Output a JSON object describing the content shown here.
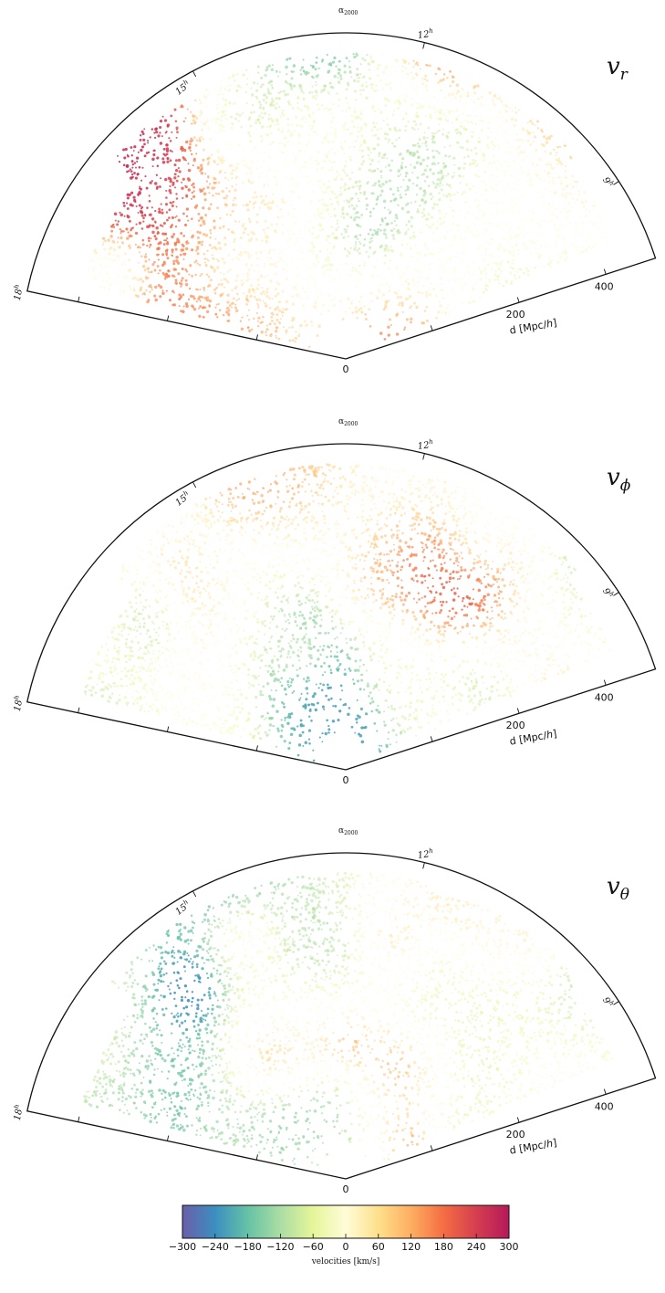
{
  "panels": [
    {
      "chart_data": {
        "type": "scatter",
        "title": "v_r",
        "title_symbol": "v",
        "title_subscript": "r",
        "projection": "polar-wedge",
        "ra_axis_label_symbol": "α",
        "ra_axis_label_subscript": "2000",
        "ra_ticks": [
          {
            "h": "12",
            "sup": "h"
          },
          {
            "h": "15",
            "sup": "h"
          },
          {
            "h": "9",
            "sup": "h"
          },
          {
            "h": "18",
            "sup": "h"
          }
        ],
        "distance_label": "d [Mpc/ℎ]",
        "distance_ticks": [
          "0",
          "200",
          "400"
        ],
        "seed": 11,
        "color_quantity": "radial velocity (km/s)"
      }
    },
    {
      "chart_data": {
        "type": "scatter",
        "title": "v_phi",
        "title_symbol": "v",
        "title_subscript": "ϕ",
        "projection": "polar-wedge",
        "ra_axis_label_symbol": "α",
        "ra_axis_label_subscript": "2000",
        "ra_ticks": [
          {
            "h": "12",
            "sup": "h"
          },
          {
            "h": "15",
            "sup": "h"
          },
          {
            "h": "9",
            "sup": "h"
          },
          {
            "h": "18",
            "sup": "h"
          }
        ],
        "distance_label": "d [Mpc/ℎ]",
        "distance_ticks": [
          "0",
          "200",
          "400"
        ],
        "seed": 29,
        "color_quantity": "azimuthal velocity (km/s)"
      }
    },
    {
      "chart_data": {
        "type": "scatter",
        "title": "v_theta",
        "title_symbol": "v",
        "title_subscript": "θ",
        "projection": "polar-wedge",
        "ra_axis_label_symbol": "α",
        "ra_axis_label_subscript": "2000",
        "ra_ticks": [
          {
            "h": "12",
            "sup": "h"
          },
          {
            "h": "15",
            "sup": "h"
          },
          {
            "h": "9",
            "sup": "h"
          },
          {
            "h": "18",
            "sup": "h"
          }
        ],
        "distance_label": "d [Mpc/ℎ]",
        "distance_ticks": [
          "0",
          "200",
          "400"
        ],
        "seed": 47,
        "color_quantity": "polar velocity (km/s)"
      }
    }
  ],
  "colorbar": {
    "title": "velocities [km/s]",
    "min": -300,
    "max": 300,
    "ticks": [
      "−300",
      "−240",
      "−180",
      "−120",
      "−60",
      "0",
      "60",
      "120",
      "180",
      "240",
      "300"
    ],
    "colormap": "Spectral_r",
    "stops": [
      "#6a5eaa",
      "#3b8fc0",
      "#66c2a5",
      "#abdda4",
      "#e6f598",
      "#fffcd8",
      "#fee08b",
      "#fdae61",
      "#f46d43",
      "#d53e4f",
      "#b5195a"
    ]
  }
}
